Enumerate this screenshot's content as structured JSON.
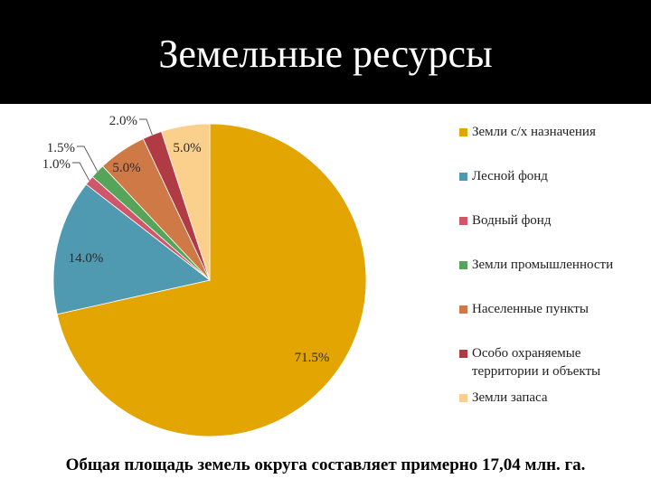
{
  "title": "Земельные ресурсы",
  "footer": "Общая площадь земель округа составляет примерно 17,04 млн. га.",
  "chart_data": {
    "type": "pie",
    "categories": [
      "Земли с/х назначения",
      "Лесной фонд",
      "Водный фонд",
      "Земли промышленности",
      "Населенные пункты",
      "Особо охраняемые территории и объекты",
      "Земли запаса"
    ],
    "values": [
      71.5,
      14.0,
      1.0,
      1.5,
      5.0,
      2.0,
      5.0
    ],
    "value_labels": [
      "71.5%",
      "14.0%",
      "1.0%",
      "1.5%",
      "5.0%",
      "2.0%",
      "5.0%"
    ],
    "colors": [
      "#E2A502",
      "#4F99B1",
      "#D0566A",
      "#56A45A",
      "#CF7A46",
      "#B03B45",
      "#FAD08C"
    ],
    "legend_placement": "right"
  }
}
